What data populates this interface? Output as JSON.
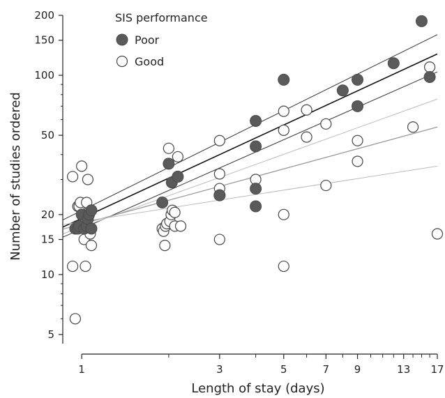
{
  "chart_data": {
    "type": "scatter",
    "xlabel": "Length of stay (days)",
    "ylabel": "Number of studies ordered",
    "xscale": "log",
    "yscale": "log",
    "xlim": [
      0.86,
      17
    ],
    "ylim": [
      4.5,
      200
    ],
    "xticks": [
      1,
      3,
      5,
      7,
      9,
      13,
      17
    ],
    "yticks": [
      5,
      10,
      15,
      20,
      50,
      100,
      150,
      200
    ],
    "grid": false,
    "legend": {
      "title": "SIS performance",
      "placement": "top-left"
    },
    "colors": {
      "poor": "#5a5a5a",
      "good": "#ffffff",
      "axis": "#222222"
    },
    "series": [
      {
        "name": "Poor",
        "style": "filled",
        "x": [
          0.95,
          0.97,
          0.98,
          1.0,
          1.02,
          1.04,
          1.05,
          1.06,
          1.08,
          1.08,
          1.9,
          2.0,
          2.05,
          2.15,
          3.0,
          3.0,
          4.0,
          4.0,
          4.0,
          4.0,
          5.0,
          8.0,
          9.0,
          9.0,
          12.0,
          15.0,
          16.0
        ],
        "y": [
          17,
          17,
          17.5,
          20,
          17,
          17.5,
          19,
          20,
          17,
          21,
          23,
          36,
          29,
          31,
          25,
          25,
          59,
          44,
          27,
          22,
          95,
          84,
          95,
          70,
          115,
          187,
          98
        ]
      },
      {
        "name": "Good",
        "style": "hollow",
        "x": [
          0.93,
          0.93,
          0.95,
          0.97,
          0.98,
          0.99,
          1.0,
          1.02,
          1.03,
          1.04,
          1.05,
          1.07,
          1.08,
          1.9,
          1.92,
          1.94,
          1.95,
          1.97,
          2.0,
          2.02,
          2.04,
          2.06,
          2.1,
          2.1,
          2.15,
          2.2,
          3.0,
          3.0,
          3.0,
          3.0,
          4.0,
          4.0,
          4.0,
          5.0,
          5.0,
          5.0,
          5.0,
          6.0,
          6.0,
          7.0,
          7.0,
          9.0,
          9.0,
          14.0,
          16.0,
          17.0
        ],
        "y": [
          11,
          31,
          6,
          22,
          22,
          23,
          35,
          15,
          11,
          23,
          30,
          16,
          14,
          17,
          16.5,
          14,
          17.5,
          18,
          43,
          18.5,
          20,
          21,
          20.5,
          17.5,
          39,
          17.5,
          47,
          27,
          32,
          15,
          30,
          27,
          44,
          66,
          53,
          20,
          11,
          67,
          49,
          57,
          28,
          47,
          37,
          55,
          110,
          16
        ]
      }
    ],
    "fit_lines": [
      {
        "group": "poor-upper",
        "color": "#333333",
        "width": 1.0,
        "points": [
          [
            0.86,
            18.8
          ],
          [
            17,
            160
          ]
        ]
      },
      {
        "group": "poor-fit",
        "color": "#111111",
        "width": 1.6,
        "points": [
          [
            0.86,
            17.3
          ],
          [
            17,
            128
          ]
        ]
      },
      {
        "group": "poor-lower",
        "color": "#333333",
        "width": 1.0,
        "points": [
          [
            0.86,
            15.4
          ],
          [
            17,
            104
          ]
        ]
      },
      {
        "group": "good-upper",
        "color": "#bbbbbb",
        "width": 1.0,
        "points": [
          [
            0.86,
            16.0
          ],
          [
            17,
            76
          ]
        ]
      },
      {
        "group": "good-fit",
        "color": "#999999",
        "width": 1.3,
        "points": [
          [
            0.86,
            16.9
          ],
          [
            17,
            55
          ]
        ]
      },
      {
        "group": "good-lower",
        "color": "#bbbbbb",
        "width": 1.0,
        "points": [
          [
            0.86,
            17.8
          ],
          [
            17,
            35
          ]
        ]
      }
    ]
  }
}
